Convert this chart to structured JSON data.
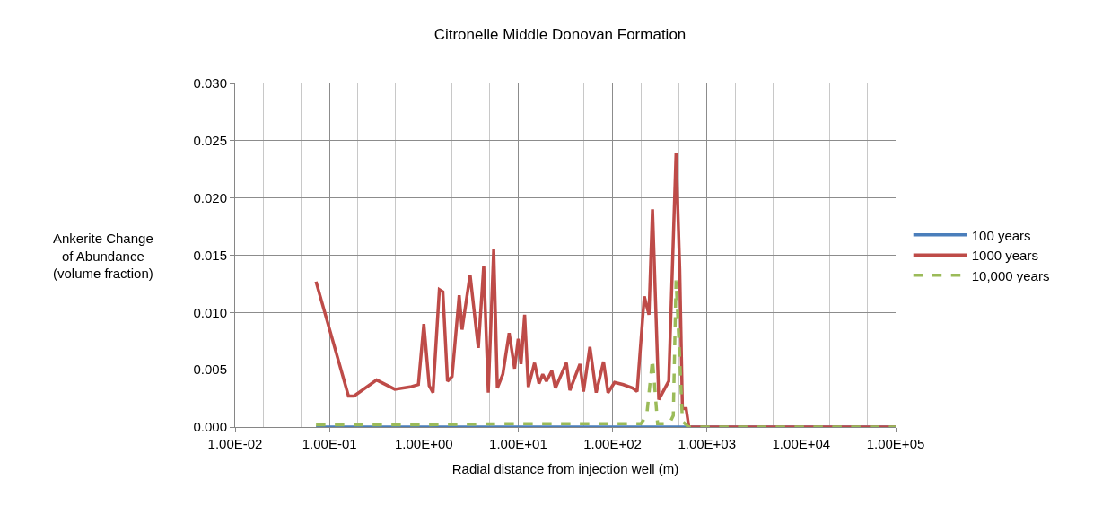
{
  "chart_data": {
    "type": "line",
    "title": "Citronelle Middle Donovan Formation",
    "xlabel": "Radial distance from injection well (m)",
    "ylabel": "Ankerite Change\nof Abundance\n(volume fraction)",
    "log": "x",
    "xlim": [
      0.01,
      100000
    ],
    "xticks": [
      {
        "value": 0.01,
        "label": "1.00E-02"
      },
      {
        "value": 0.1,
        "label": "1.00E-01"
      },
      {
        "value": 1,
        "label": "1.00E+00"
      },
      {
        "value": 10,
        "label": "1.00E+01"
      },
      {
        "value": 100,
        "label": "1.00E+02"
      },
      {
        "value": 1000,
        "label": "1.00E+03"
      },
      {
        "value": 10000,
        "label": "1.00E+04"
      },
      {
        "value": 100000,
        "label": "1.00E+05"
      }
    ],
    "ylim": [
      0,
      0.03
    ],
    "yticks": [
      {
        "value": 0,
        "label": "0.000"
      },
      {
        "value": 0.005,
        "label": "0.005"
      },
      {
        "value": 0.01,
        "label": "0.010"
      },
      {
        "value": 0.015,
        "label": "0.015"
      },
      {
        "value": 0.02,
        "label": "0.020"
      },
      {
        "value": 0.025,
        "label": "0.025"
      },
      {
        "value": 0.03,
        "label": "0.030"
      }
    ],
    "grid": true,
    "legend": "right",
    "marker": "none",
    "series": [
      {
        "name": "100 years",
        "color": "#4a7ebb",
        "line_style": "solid",
        "x": [
          0.072,
          1,
          10,
          100,
          1000,
          10000,
          100000
        ],
        "values": [
          0,
          0,
          0,
          0,
          0,
          0,
          0
        ]
      },
      {
        "name": "1000 years",
        "color": "#be4b48",
        "line_style": "solid",
        "x": [
          0.072,
          0.159,
          0.182,
          0.316,
          0.492,
          0.718,
          0.875,
          1.0,
          1.14,
          1.25,
          1.46,
          1.59,
          1.78,
          1.99,
          2.37,
          2.54,
          3.09,
          3.78,
          4.31,
          4.82,
          5.5,
          6.01,
          6.87,
          8.02,
          9.16,
          10.0,
          10.7,
          11.7,
          12.8,
          14.9,
          16.6,
          18.2,
          19.9,
          22.7,
          24.8,
          32.4,
          35.3,
          45.1,
          49.2,
          57.5,
          67.1,
          80.2,
          89.5,
          105,
          130,
          163,
          182,
          217,
          243,
          265,
          309,
          394,
          471,
          515,
          550,
          602,
          643,
          702,
          1000,
          10000,
          100000
        ],
        "values": [
          0.0127,
          0.0027,
          0.0027,
          0.0041,
          0.0033,
          0.0035,
          0.0037,
          0.009,
          0.0036,
          0.003,
          0.012,
          0.0118,
          0.004,
          0.0044,
          0.0115,
          0.0085,
          0.0133,
          0.0069,
          0.0141,
          0.003,
          0.0155,
          0.0034,
          0.0046,
          0.0082,
          0.0051,
          0.0077,
          0.0055,
          0.0098,
          0.0035,
          0.0056,
          0.0038,
          0.0046,
          0.004,
          0.0049,
          0.0034,
          0.0056,
          0.0032,
          0.0055,
          0.0031,
          0.007,
          0.003,
          0.0057,
          0.003,
          0.0039,
          0.0037,
          0.0034,
          0.0031,
          0.0114,
          0.0098,
          0.019,
          0.0024,
          0.004,
          0.0239,
          0.0138,
          0.0016,
          0.0016,
          0,
          0,
          0,
          0,
          0
        ]
      },
      {
        "name": "10,000 years",
        "color": "#9bbb59",
        "line_style": "dashed",
        "x": [
          0.072,
          0.5,
          1,
          10,
          100,
          200,
          230,
          265,
          300,
          400,
          440,
          471,
          515,
          550,
          643,
          702,
          1000,
          10000,
          100000
        ],
        "values": [
          0.0002,
          0.0002,
          0.0002,
          0.0003,
          0.0003,
          0.0003,
          0.001,
          0.0059,
          0.0003,
          0.0003,
          0.001,
          0.0128,
          0.006,
          0.0005,
          0,
          0,
          0,
          0,
          0
        ]
      }
    ]
  }
}
